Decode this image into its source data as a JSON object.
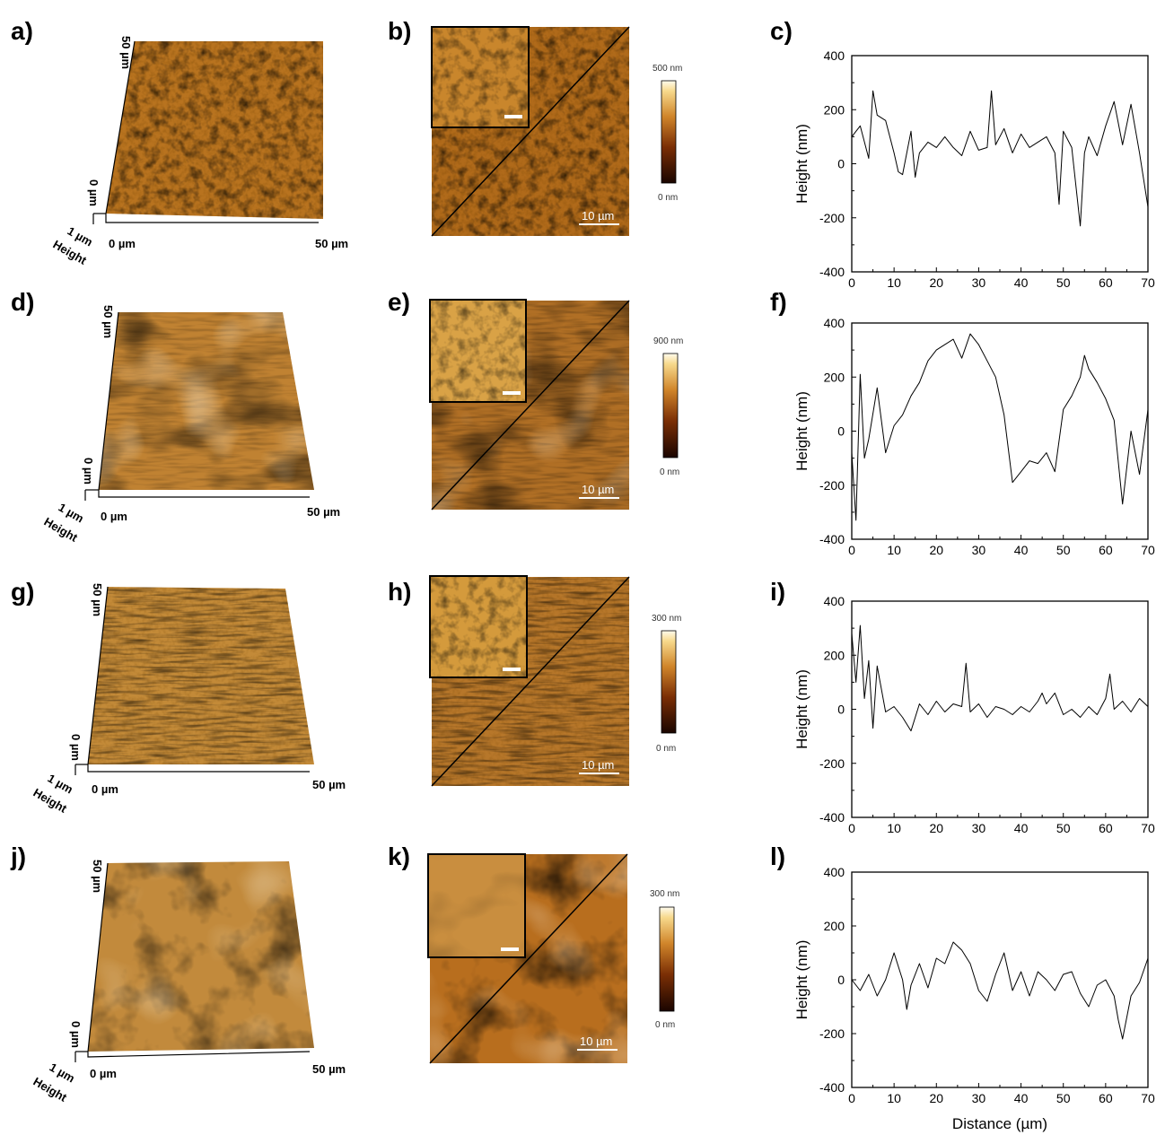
{
  "figure": {
    "rows": [
      {
        "labels": [
          "a)",
          "b)",
          "c)"
        ],
        "surface_base_color": "#b8731f",
        "colorbar": {
          "max": "500 nm",
          "min": "0 nm"
        },
        "scale_bar": "10 µm",
        "axis3d": {
          "y_top": "50 µm",
          "y_bottom": "0 µm",
          "x_left": "0 µm",
          "x_right": "50 µm",
          "z": "1 µm",
          "height": "Height"
        }
      },
      {
        "labels": [
          "d)",
          "e)",
          "f)"
        ],
        "surface_base_color": "#c08232",
        "colorbar": {
          "max": "900 nm",
          "min": "0 nm"
        },
        "scale_bar": "10 µm",
        "axis3d": {
          "y_top": "50 µm",
          "y_bottom": "0 µm",
          "x_left": "0 µm",
          "x_right": "50 µm",
          "z": "1 µm",
          "height": "Height"
        }
      },
      {
        "labels": [
          "g)",
          "h)",
          "i)"
        ],
        "surface_base_color": "#c38a38",
        "colorbar": {
          "max": "300 nm",
          "min": "0 nm"
        },
        "scale_bar": "10 µm",
        "axis3d": {
          "y_top": "50 µm",
          "y_bottom": "0 µm",
          "x_left": "0 µm",
          "x_right": "50 µm",
          "z": "1 µm",
          "height": "Height"
        }
      },
      {
        "labels": [
          "j)",
          "k)",
          "l)"
        ],
        "surface_base_color": "#c28a3c",
        "colorbar": {
          "max": "300 nm",
          "min": "0 nm"
        },
        "scale_bar": "10 µm",
        "axis3d": {
          "y_top": "50 µm",
          "y_bottom": "0 µm",
          "x_left": "0 µm",
          "x_right": "50 µm",
          "z": "1 µm",
          "height": "Height"
        }
      }
    ]
  },
  "chart_data": [
    {
      "type": "line",
      "panel": "c)",
      "ylabel": "Height (nm)",
      "xlabel": "",
      "xlim": [
        0,
        70
      ],
      "ylim": [
        -400,
        400
      ],
      "xticks": [
        0,
        10,
        20,
        30,
        40,
        50,
        60,
        70
      ],
      "yticks": [
        -400,
        -200,
        0,
        200,
        400
      ],
      "x": [
        0,
        2,
        4,
        5,
        6,
        8,
        10,
        11,
        12,
        14,
        15,
        16,
        18,
        20,
        22,
        24,
        26,
        28,
        30,
        32,
        33,
        34,
        36,
        38,
        40,
        42,
        44,
        46,
        48,
        49,
        50,
        52,
        54,
        55,
        56,
        58,
        60,
        62,
        64,
        66,
        68,
        70
      ],
      "y": [
        100,
        140,
        20,
        270,
        180,
        160,
        40,
        -30,
        -40,
        120,
        -50,
        40,
        80,
        60,
        100,
        60,
        30,
        120,
        50,
        60,
        270,
        70,
        130,
        40,
        110,
        60,
        80,
        100,
        40,
        -150,
        120,
        60,
        -230,
        40,
        100,
        30,
        140,
        230,
        70,
        220,
        40,
        -160
      ]
    },
    {
      "type": "line",
      "panel": "f)",
      "ylabel": "Height (nm)",
      "xlabel": "",
      "xlim": [
        0,
        70
      ],
      "ylim": [
        -400,
        400
      ],
      "xticks": [
        0,
        10,
        20,
        30,
        40,
        50,
        60,
        70
      ],
      "yticks": [
        -400,
        -200,
        0,
        200,
        400
      ],
      "x": [
        0,
        1,
        2,
        3,
        4,
        6,
        8,
        10,
        12,
        14,
        16,
        18,
        20,
        22,
        24,
        26,
        28,
        30,
        32,
        34,
        36,
        38,
        40,
        42,
        44,
        46,
        48,
        50,
        52,
        54,
        55,
        56,
        58,
        60,
        62,
        64,
        66,
        68,
        70
      ],
      "y": [
        -80,
        -330,
        210,
        -100,
        -30,
        160,
        -80,
        20,
        60,
        130,
        180,
        260,
        300,
        320,
        340,
        270,
        360,
        320,
        260,
        200,
        60,
        -190,
        -150,
        -110,
        -120,
        -80,
        -150,
        80,
        130,
        200,
        280,
        230,
        180,
        120,
        40,
        -270,
        0,
        -160,
        80
      ]
    },
    {
      "type": "line",
      "panel": "i)",
      "ylabel": "Height (nm)",
      "xlabel": "",
      "xlim": [
        0,
        70
      ],
      "ylim": [
        -400,
        400
      ],
      "xticks": [
        0,
        10,
        20,
        30,
        40,
        50,
        60,
        70
      ],
      "yticks": [
        -400,
        -200,
        0,
        200,
        400
      ],
      "x": [
        0,
        1,
        2,
        3,
        4,
        5,
        6,
        8,
        10,
        12,
        14,
        16,
        18,
        20,
        22,
        24,
        26,
        27,
        28,
        30,
        32,
        34,
        36,
        38,
        40,
        42,
        44,
        45,
        46,
        48,
        50,
        52,
        54,
        56,
        58,
        60,
        61,
        62,
        64,
        66,
        68,
        70
      ],
      "y": [
        280,
        100,
        310,
        40,
        180,
        -70,
        160,
        -10,
        10,
        -30,
        -80,
        20,
        -20,
        30,
        -10,
        20,
        10,
        170,
        -10,
        20,
        -30,
        10,
        0,
        -20,
        10,
        -10,
        30,
        60,
        20,
        60,
        -20,
        0,
        -30,
        10,
        -20,
        40,
        130,
        0,
        30,
        -10,
        40,
        10
      ]
    },
    {
      "type": "line",
      "panel": "l)",
      "ylabel": "Height (nm)",
      "xlabel": "Distance (µm)",
      "xlim": [
        0,
        70
      ],
      "ylim": [
        -400,
        400
      ],
      "xticks": [
        0,
        10,
        20,
        30,
        40,
        50,
        60,
        70
      ],
      "yticks": [
        -400,
        -200,
        0,
        200,
        400
      ],
      "x": [
        0,
        2,
        4,
        6,
        8,
        10,
        12,
        13,
        14,
        16,
        18,
        20,
        22,
        24,
        26,
        28,
        30,
        32,
        34,
        36,
        38,
        40,
        42,
        44,
        46,
        48,
        50,
        52,
        54,
        56,
        58,
        60,
        62,
        63,
        64,
        66,
        68,
        70
      ],
      "y": [
        0,
        -40,
        20,
        -60,
        0,
        100,
        0,
        -110,
        -20,
        60,
        -30,
        80,
        60,
        140,
        110,
        60,
        -40,
        -80,
        20,
        100,
        -40,
        30,
        -60,
        30,
        0,
        -40,
        20,
        30,
        -50,
        -100,
        -20,
        0,
        -60,
        -150,
        -220,
        -60,
        -10,
        80
      ]
    }
  ]
}
